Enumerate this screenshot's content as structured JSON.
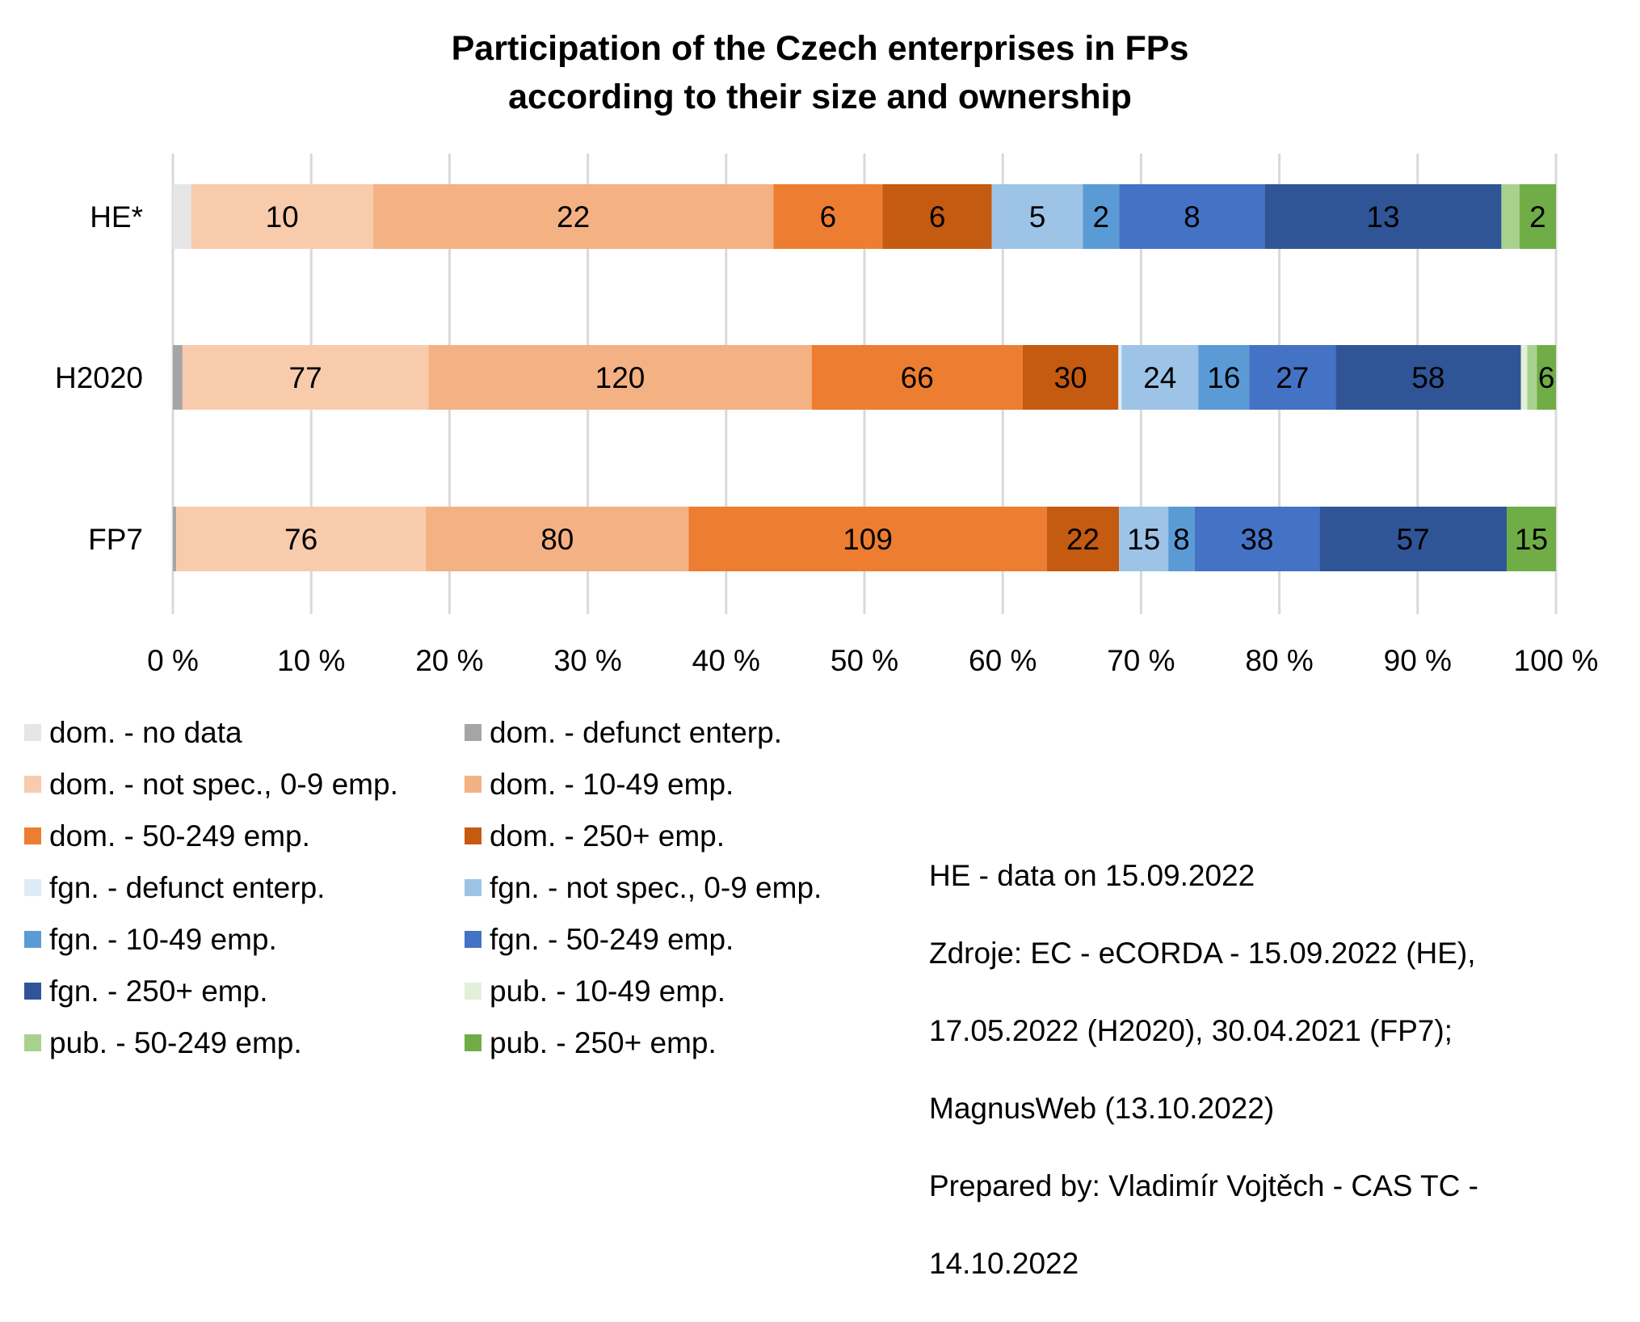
{
  "chart_data": {
    "type": "bar",
    "orientation": "horizontal",
    "stacked": "percent",
    "title": "Participation of the Czech enterprises in FPs according to their size and ownership",
    "title_lines": [
      "Participation of the Czech enterprises in FPs",
      "according to their size and ownership"
    ],
    "categories": [
      "HE*",
      "H2020",
      "FP7"
    ],
    "xlabel": "",
    "ylabel": "",
    "xlim": [
      0,
      100
    ],
    "x_ticks": [
      "0 %",
      "10 %",
      "20 %",
      "30 %",
      "40 %",
      "50 %",
      "60 %",
      "70 %",
      "80 %",
      "90 %",
      "100 %"
    ],
    "grid": true,
    "legend_position": "bottom-left",
    "series": [
      {
        "name": "dom. - no data",
        "color": "#E7E6E6",
        "values": [
          1,
          0,
          0
        ],
        "labels": [
          "",
          "",
          ""
        ]
      },
      {
        "name": "dom. - defunct enterp.",
        "color": "#A5A5A5",
        "values": [
          0,
          3,
          1
        ],
        "labels": [
          "",
          "",
          ""
        ]
      },
      {
        "name": "dom. - not spec., 0-9 emp.",
        "color": "#F8CBAD",
        "values": [
          10,
          77,
          76
        ],
        "labels": [
          "10",
          "77",
          "76"
        ]
      },
      {
        "name": "dom. - 10-49 emp.",
        "color": "#F4B183",
        "values": [
          22,
          120,
          80
        ],
        "labels": [
          "22",
          "120",
          "80"
        ]
      },
      {
        "name": "dom. - 50-249 emp.",
        "color": "#ED7D31",
        "values": [
          6,
          66,
          109
        ],
        "labels": [
          "6",
          "66",
          "109"
        ]
      },
      {
        "name": "dom. - 250+ emp.",
        "color": "#C55A11",
        "values": [
          6,
          30,
          22
        ],
        "labels": [
          "6",
          "30",
          "22"
        ]
      },
      {
        "name": "fgn. - defunct enterp.",
        "color": "#DEEBF7",
        "values": [
          0,
          1,
          0
        ],
        "labels": [
          "",
          "",
          ""
        ]
      },
      {
        "name": "fgn. - not spec., 0-9 emp.",
        "color": "#9DC3E6",
        "values": [
          5,
          24,
          15
        ],
        "labels": [
          "5",
          "24",
          "15"
        ]
      },
      {
        "name": "fgn. - 10-49 emp.",
        "color": "#5B9BD5",
        "values": [
          2,
          16,
          8
        ],
        "labels": [
          "2",
          "16",
          "8"
        ]
      },
      {
        "name": "fgn. - 50-249 emp.",
        "color": "#4472C4",
        "values": [
          8,
          27,
          38
        ],
        "labels": [
          "8",
          "27",
          "38"
        ]
      },
      {
        "name": "fgn. - 250+ emp.",
        "color": "#2F5597",
        "values": [
          13,
          58,
          57
        ],
        "labels": [
          "13",
          "58",
          "57"
        ]
      },
      {
        "name": "pub. - 10-49 emp.",
        "color": "#E2F0D9",
        "values": [
          0,
          2,
          0
        ],
        "labels": [
          "",
          "",
          ""
        ]
      },
      {
        "name": "pub. - 50-249 emp.",
        "color": "#A9D18E",
        "values": [
          1,
          3,
          0
        ],
        "labels": [
          "",
          "",
          ""
        ]
      },
      {
        "name": "pub. - 250+ emp.",
        "color": "#70AD47",
        "values": [
          2,
          6,
          15
        ],
        "labels": [
          "2",
          "6",
          "15"
        ]
      }
    ]
  },
  "note_lines": [
    "HE - data on 15.09.2022",
    "Zdroje: EC - eCORDA - 15.09.2022 (HE),",
    "17.05.2022 (H2020), 30.04.2021 (FP7);",
    "MagnusWeb (13.10.2022)",
    "Prepared by: Vladimír Vojtěch - CAS TC -",
    "14.10.2022"
  ]
}
